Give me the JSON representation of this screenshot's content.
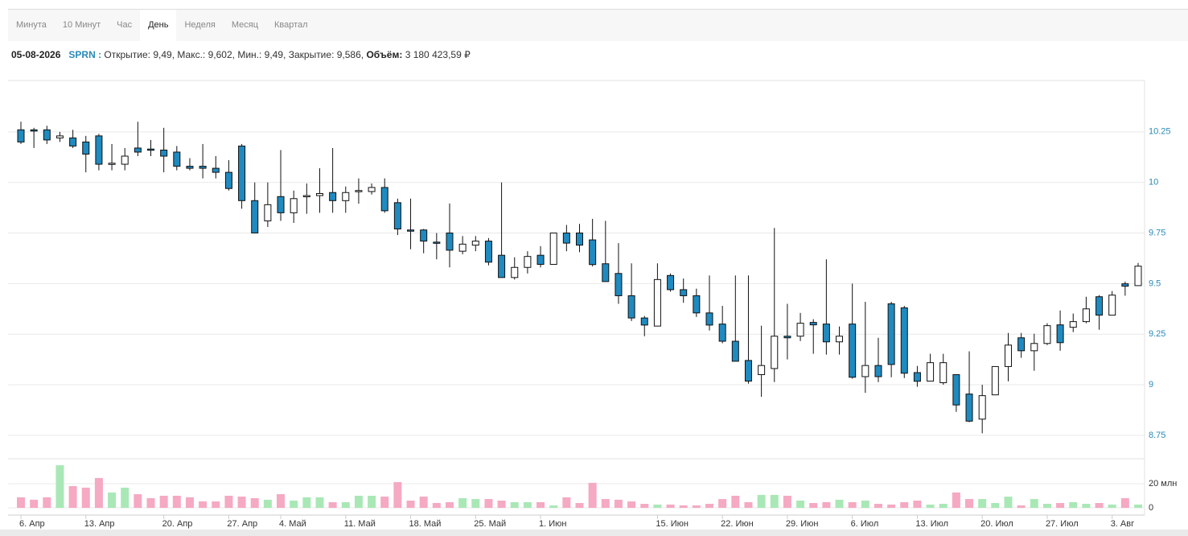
{
  "tabs": [
    {
      "label": "Минута",
      "active": false
    },
    {
      "label": "10 Минут",
      "active": false
    },
    {
      "label": "Час",
      "active": false
    },
    {
      "label": "День",
      "active": true
    },
    {
      "label": "Неделя",
      "active": false
    },
    {
      "label": "Месяц",
      "active": false
    },
    {
      "label": "Квартал",
      "active": false
    }
  ],
  "info": {
    "date": "05-08-2026",
    "ticker": "SPRN :",
    "fields": [
      {
        "label": "Открытие:",
        "value": "9,49,"
      },
      {
        "label": "Макс.:",
        "value": "9,602,"
      },
      {
        "label": "Мин.:",
        "value": "9,49,"
      },
      {
        "label": "Закрытие:",
        "value": "9,586,"
      },
      {
        "label": "Объём:",
        "value": "3 180 423,59 ₽",
        "bold": true
      }
    ]
  },
  "chart_data": {
    "type": "candlestick",
    "categories": [
      "6. Апр",
      null,
      null,
      null,
      null,
      "13. Апр",
      null,
      null,
      null,
      null,
      null,
      "20. Апр",
      null,
      null,
      null,
      null,
      "27. Апр",
      null,
      null,
      null,
      "4. Май",
      null,
      null,
      null,
      null,
      "11. Май",
      null,
      null,
      null,
      null,
      "18. Май",
      null,
      null,
      null,
      null,
      "25. Май",
      null,
      null,
      null,
      null,
      "1. Июн",
      null,
      null,
      null,
      null,
      null,
      null,
      null,
      null,
      "15. Июн",
      null,
      null,
      null,
      null,
      "22. Июн",
      null,
      null,
      null,
      null,
      "29. Июн",
      null,
      null,
      null,
      null,
      "6. Июл",
      null,
      null,
      null,
      null,
      "13. Июл",
      null,
      null,
      null,
      null,
      "20. Июл",
      null,
      null,
      null,
      null,
      "27. Июл",
      null,
      null,
      null,
      null,
      "3. Авг",
      null,
      null
    ],
    "open": [
      10.26,
      10.26,
      10.26,
      10.22,
      10.22,
      10.2,
      10.23,
      10.09,
      10.09,
      10.17,
      10.165,
      10.16,
      10.15,
      10.08,
      10.08,
      10.07,
      10.05,
      10.18,
      9.91,
      9.81,
      9.93,
      9.85,
      9.93,
      9.935,
      9.95,
      9.91,
      9.955,
      9.955,
      9.975,
      9.9,
      9.765,
      9.765,
      9.705,
      9.75,
      9.66,
      9.69,
      9.71,
      9.64,
      9.53,
      9.58,
      9.64,
      9.595,
      9.75,
      9.75,
      9.716,
      9.598,
      9.55,
      9.44,
      9.33,
      9.29,
      9.54,
      9.47,
      9.44,
      9.355,
      9.3,
      9.215,
      9.12,
      9.05,
      9.08,
      9.24,
      9.24,
      9.308,
      9.3,
      9.212,
      9.3,
      9.04,
      9.095,
      9.4,
      9.38,
      9.06,
      9.018,
      9.01,
      9.05,
      8.954,
      8.83,
      8.95,
      9.09,
      9.232,
      9.168,
      9.204,
      9.296,
      9.284,
      9.312,
      9.435,
      9.344,
      9.499,
      9.49
    ],
    "high": [
      10.3,
      10.27,
      10.28,
      10.25,
      10.26,
      10.23,
      10.24,
      10.19,
      10.17,
      10.3,
      10.21,
      10.27,
      10.18,
      10.12,
      10.19,
      10.13,
      10.11,
      10.19,
      10,
      10,
      10.16,
      9.96,
      9.995,
      10.07,
      10.17,
      9.98,
      10.02,
      9.995,
      10.02,
      9.92,
      9.92,
      9.77,
      9.75,
      9.896,
      9.735,
      9.735,
      9.725,
      10,
      9.63,
      9.66,
      9.685,
      9.75,
      9.79,
      9.795,
      9.82,
      9.81,
      9.7,
      9.6,
      9.34,
      9.6,
      9.55,
      9.525,
      9.475,
      9.54,
      9.39,
      9.54,
      9.54,
      9.292,
      9.775,
      9.4,
      9.355,
      9.324,
      9.62,
      9.288,
      9.5,
      9.41,
      9.232,
      9.41,
      9.39,
      9.093,
      9.153,
      9.153,
      9.05,
      9.165,
      9,
      9.09,
      9.256,
      9.256,
      9.252,
      9.304,
      9.367,
      9.352,
      9.435,
      9.443,
      9.463,
      9.51,
      9.602
    ],
    "low": [
      10.19,
      10.17,
      10.19,
      10.2,
      10.17,
      10.05,
      10.06,
      10.06,
      10.06,
      10.13,
      10.13,
      10.05,
      10.06,
      10.06,
      10.02,
      10.02,
      9.96,
      9.87,
      9.75,
      9.78,
      9.81,
      9.8,
      9.845,
      9.85,
      9.85,
      9.85,
      9.895,
      9.94,
      9.85,
      9.74,
      9.67,
      9.65,
      9.62,
      9.58,
      9.645,
      9.66,
      9.59,
      9.53,
      9.52,
      9.55,
      9.58,
      9.595,
      9.66,
      9.655,
      9.585,
      9.51,
      9.4,
      9.315,
      9.24,
      9.29,
      9.46,
      9.405,
      9.335,
      9.268,
      9.205,
      9.116,
      9.005,
      8.94,
      9.013,
      9.125,
      9.216,
      9.153,
      9.149,
      9.149,
      9.03,
      8.96,
      9.013,
      9.037,
      9.033,
      8.99,
      9.018,
      9,
      8.866,
      8.815,
      8.76,
      8.95,
      9.017,
      9.133,
      9.069,
      9.196,
      9.168,
      9.26,
      9.304,
      9.272,
      9.344,
      9.44,
      9.49
    ],
    "close": [
      10.2,
      10.255,
      10.21,
      10.23,
      10.18,
      10.14,
      10.09,
      10.095,
      10.13,
      10.15,
      10.16,
      10.13,
      10.08,
      10.07,
      10.07,
      10.05,
      9.97,
      9.91,
      9.75,
      9.89,
      9.85,
      9.92,
      9.935,
      9.945,
      9.91,
      9.95,
      9.96,
      9.975,
      9.86,
      9.77,
      9.76,
      9.71,
      9.7,
      9.665,
      9.695,
      9.71,
      9.606,
      9.53,
      9.58,
      9.634,
      9.595,
      9.75,
      9.7,
      9.69,
      9.594,
      9.51,
      9.44,
      9.33,
      9.295,
      9.52,
      9.47,
      9.44,
      9.355,
      9.295,
      9.215,
      9.116,
      9.018,
      9.095,
      9.24,
      9.232,
      9.304,
      9.296,
      9.212,
      9.24,
      9.037,
      9.095,
      9.04,
      9.1,
      9.057,
      9.017,
      9.109,
      9.109,
      8.9,
      8.82,
      8.946,
      9.09,
      9.196,
      9.168,
      9.204,
      9.292,
      9.208,
      9.312,
      9.375,
      9.344,
      9.443,
      9.487,
      9.586
    ],
    "volume": [
      8.7,
      6.7,
      8.7,
      35.3,
      18,
      16.7,
      24.7,
      12.7,
      16.7,
      11.3,
      8,
      10,
      10,
      8.7,
      5.3,
      5.3,
      10,
      9.3,
      8,
      6.7,
      11.3,
      6,
      8.7,
      8.7,
      4.7,
      4.7,
      10,
      10,
      9.3,
      21.3,
      6,
      9.3,
      4,
      4.7,
      8,
      7.3,
      7.3,
      6,
      4.7,
      4.7,
      4.7,
      2,
      8.7,
      4,
      20.7,
      7.3,
      6.7,
      5.3,
      3.3,
      2.7,
      2.7,
      2,
      2,
      3.3,
      7.3,
      10,
      4.7,
      10.7,
      10.7,
      10,
      6,
      4,
      4.7,
      6.7,
      4.7,
      6,
      3.3,
      2.7,
      4.7,
      6,
      2.7,
      3.3,
      12.7,
      7.3,
      7.3,
      4,
      9.3,
      2,
      7.3,
      3.3,
      4,
      4.7,
      3.3,
      4,
      2.7,
      8,
      2.7
    ],
    "up_color": "#ffffff",
    "down_color": "#1f8ac0",
    "volume_up_color": "#a9e8b6",
    "volume_down_color": "#f5a9c2",
    "ylim": [
      8.67,
      10.5
    ],
    "yticks": [
      8.75,
      9,
      9.25,
      9.5,
      9.75,
      10,
      10.25
    ],
    "volume_ylim": [
      0,
      40
    ],
    "volume_yticks": [
      0,
      {
        "value": 20,
        "label": "20 млн"
      }
    ],
    "grid": true
  }
}
